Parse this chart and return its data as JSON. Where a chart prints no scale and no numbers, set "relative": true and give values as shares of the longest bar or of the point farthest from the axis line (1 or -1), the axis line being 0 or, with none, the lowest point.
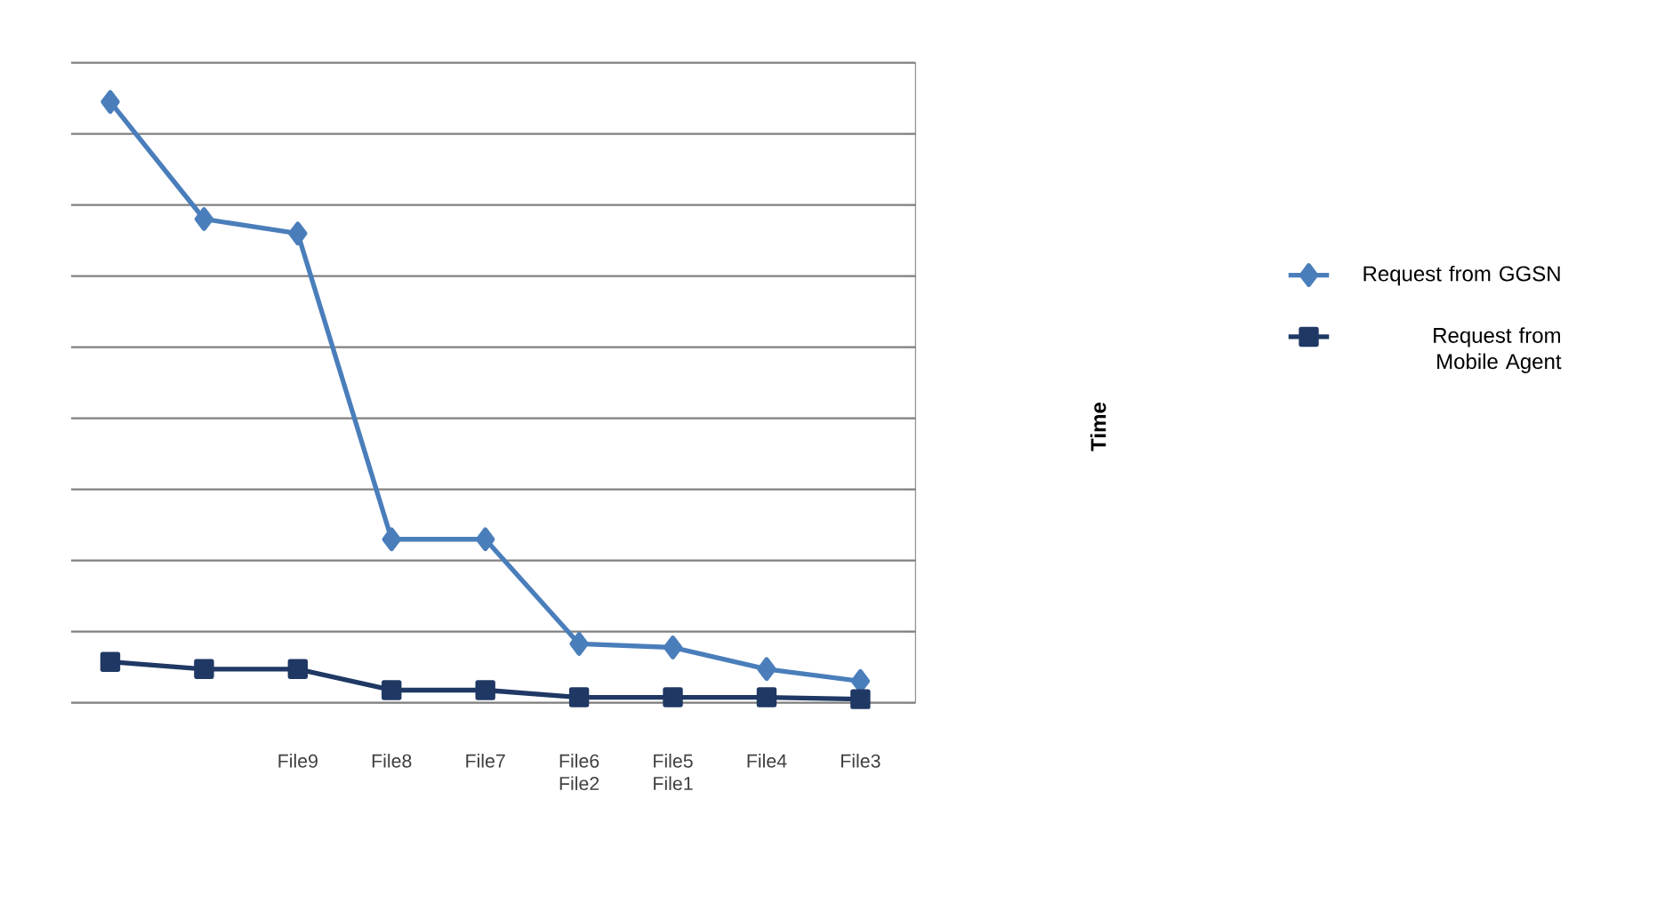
{
  "chart_data": {
    "type": "line",
    "relative": true,
    "annotations": [
      "Time"
    ],
    "categories": [
      null,
      null,
      "File9",
      "File8",
      "File7",
      "File6 File2",
      "File5 File1",
      "File4",
      "File3"
    ],
    "series": [
      {
        "name": "Request from GGSN",
        "color": "#4a7ebb",
        "marker": "diamond",
        "values": [
          1,
          0.805,
          0.781,
          0.272,
          0.272,
          0.098,
          0.092,
          0.056,
          0.036
        ]
      },
      {
        "name": "Request from Mobile Agent",
        "color": "#1f3864",
        "marker": "square",
        "values": [
          0.068,
          0.056,
          0.056,
          0.021,
          0.021,
          0.009,
          0.009,
          0.009,
          0.006
        ]
      }
    ],
    "grid": "y",
    "legend": "right",
    "line_style": "solid"
  }
}
